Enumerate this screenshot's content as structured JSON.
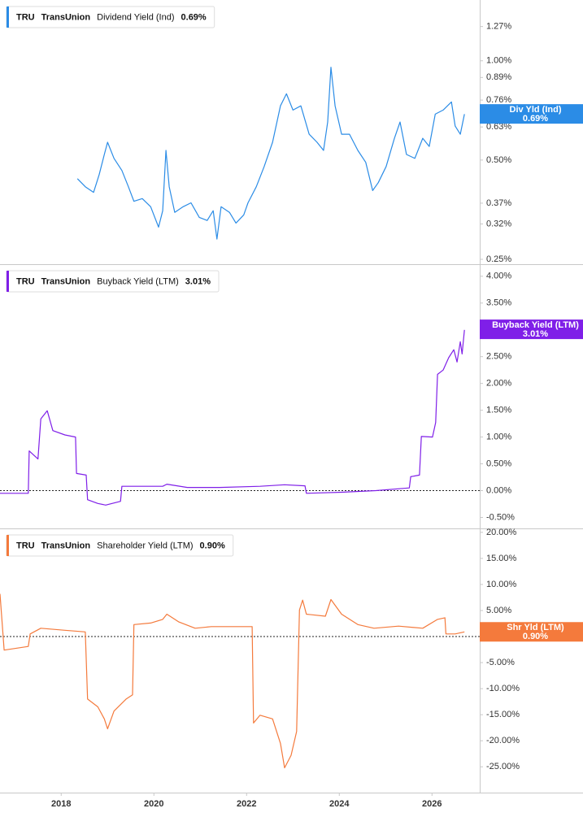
{
  "chart_data": [
    {
      "type": "line",
      "ticker": "TRU",
      "company": "TransUnion",
      "log_scale": true,
      "xlim": [
        2016.68,
        2027.03
      ],
      "ylim": [
        0.243,
        1.52
      ],
      "yticks": [
        {
          "value": 1.27,
          "label": "1.27%"
        },
        {
          "value": 1.0,
          "label": "1.00%"
        },
        {
          "value": 0.89,
          "label": "0.89%"
        },
        {
          "value": 0.76,
          "label": "0.76%"
        },
        {
          "value": 0.63,
          "label": "0.63%"
        },
        {
          "value": 0.5,
          "label": "0.50%"
        },
        {
          "value": 0.37,
          "label": "0.37%"
        },
        {
          "value": 0.32,
          "label": "0.32%"
        },
        {
          "value": 0.25,
          "label": "0.25%"
        }
      ],
      "series": [
        {
          "name": "Dividend Yield (Ind)",
          "short_name": "Div Yld (Ind)",
          "color": "#2b8ce6",
          "current": {
            "value": 0.69,
            "label": "0.69%"
          },
          "x": [
            2018.35,
            2018.52,
            2018.7,
            2018.82,
            2018.93,
            2019.0,
            2019.14,
            2019.31,
            2019.45,
            2019.57,
            2019.75,
            2019.93,
            2020.1,
            2020.19,
            2020.26,
            2020.33,
            2020.45,
            2020.63,
            2020.8,
            2020.98,
            2021.15,
            2021.28,
            2021.36,
            2021.45,
            2021.63,
            2021.77,
            2021.94,
            2022.03,
            2022.21,
            2022.38,
            2022.56,
            2022.73,
            2022.86,
            2023.0,
            2023.17,
            2023.35,
            2023.52,
            2023.66,
            2023.75,
            2023.82,
            2023.91,
            2024.05,
            2024.22,
            2024.4,
            2024.57,
            2024.72,
            2024.84,
            2025.01,
            2025.19,
            2025.31,
            2025.45,
            2025.63,
            2025.8,
            2025.94,
            2026.07,
            2026.24,
            2026.42,
            2026.5,
            2026.61,
            2026.7
          ],
          "values": [
            0.439,
            0.415,
            0.399,
            0.452,
            0.52,
            0.566,
            0.506,
            0.465,
            0.415,
            0.375,
            0.382,
            0.361,
            0.313,
            0.351,
            0.535,
            0.415,
            0.347,
            0.361,
            0.371,
            0.335,
            0.328,
            0.351,
            0.288,
            0.361,
            0.347,
            0.322,
            0.341,
            0.371,
            0.415,
            0.478,
            0.566,
            0.73,
            0.794,
            0.709,
            0.73,
            0.599,
            0.566,
            0.535,
            0.652,
            0.956,
            0.73,
            0.599,
            0.599,
            0.535,
            0.492,
            0.404,
            0.427,
            0.478,
            0.582,
            0.652,
            0.52,
            0.506,
            0.582,
            0.55,
            0.689,
            0.709,
            0.75,
            0.634,
            0.599,
            0.689
          ]
        }
      ]
    },
    {
      "type": "line",
      "ticker": "TRU",
      "company": "TransUnion",
      "log_scale": false,
      "xlim": [
        2016.68,
        2027.03
      ],
      "ylim": [
        -0.69,
        4.21
      ],
      "baseline": 0,
      "yticks": [
        {
          "value": 4,
          "label": "4.00%"
        },
        {
          "value": 3.5,
          "label": "3.50%"
        },
        {
          "value": 3,
          "label": "3.00%"
        },
        {
          "value": 2.5,
          "label": "2.50%"
        },
        {
          "value": 2,
          "label": "2.00%"
        },
        {
          "value": 1.5,
          "label": "1.50%"
        },
        {
          "value": 1,
          "label": "1.00%"
        },
        {
          "value": 0.5,
          "label": "0.50%"
        },
        {
          "value": 0,
          "label": "0.00%"
        },
        {
          "value": -0.5,
          "label": "-0.50%"
        }
      ],
      "series": [
        {
          "name": "Buyback Yield (LTM)",
          "short_name": "Buyback Yield (LTM)",
          "color": "#7f1fe8",
          "current": {
            "value": 3.01,
            "label": "3.01%"
          },
          "x": [
            2016.68,
            2017.29,
            2017.31,
            2017.5,
            2017.56,
            2017.7,
            2017.82,
            2018.08,
            2018.31,
            2018.33,
            2018.54,
            2018.57,
            2018.79,
            2018.96,
            2019.28,
            2019.31,
            2020.19,
            2020.28,
            2020.72,
            2021.42,
            2022.29,
            2022.82,
            2023.26,
            2023.29,
            2024.05,
            2024.79,
            2025.51,
            2025.54,
            2025.73,
            2025.77,
            2026.01,
            2026.08,
            2026.12,
            2026.24,
            2026.36,
            2026.47,
            2026.54,
            2026.61,
            2026.65,
            2026.7
          ],
          "values": [
            -0.05,
            -0.05,
            0.74,
            0.59,
            1.34,
            1.49,
            1.12,
            1.04,
            1.0,
            0.32,
            0.29,
            -0.17,
            -0.24,
            -0.27,
            -0.2,
            0.08,
            0.08,
            0.12,
            0.06,
            0.06,
            0.08,
            0.11,
            0.09,
            -0.05,
            -0.03,
            0.0,
            0.05,
            0.26,
            0.29,
            1.01,
            1.0,
            1.27,
            2.17,
            2.25,
            2.48,
            2.63,
            2.4,
            2.78,
            2.55,
            3.0
          ]
        }
      ]
    },
    {
      "type": "line",
      "ticker": "TRU",
      "company": "TransUnion",
      "log_scale": false,
      "xlim": [
        2016.68,
        2027.03
      ],
      "ylim": [
        -29.8,
        20.6
      ],
      "baseline": 0,
      "xticks": [
        2018,
        2020,
        2022,
        2024,
        2026
      ],
      "yticks": [
        {
          "value": 20,
          "label": "20.00%"
        },
        {
          "value": 15,
          "label": "15.00%"
        },
        {
          "value": 10,
          "label": "10.00%"
        },
        {
          "value": 5,
          "label": "5.00%"
        },
        {
          "value": 0,
          "label": "0.00%"
        },
        {
          "value": -5,
          "label": "-5.00%"
        },
        {
          "value": -10,
          "label": "-10.00%"
        },
        {
          "value": -15,
          "label": "-15.00%"
        },
        {
          "value": -20,
          "label": "-20.00%"
        },
        {
          "value": -25,
          "label": "-25.00%"
        }
      ],
      "series": [
        {
          "name": "Shareholder Yield (LTM)",
          "short_name": "Shr Yld (LTM)",
          "color": "#f47a3c",
          "current": {
            "value": 0.9,
            "label": "0.90%"
          },
          "x": [
            2016.68,
            2016.77,
            2017.29,
            2017.33,
            2017.56,
            2018.08,
            2018.52,
            2018.57,
            2018.79,
            2018.93,
            2019.0,
            2019.14,
            2019.4,
            2019.54,
            2019.57,
            2019.93,
            2020.19,
            2020.28,
            2020.54,
            2020.89,
            2021.24,
            2022.12,
            2022.15,
            2022.29,
            2022.56,
            2022.73,
            2022.82,
            2022.96,
            2023.08,
            2023.14,
            2023.21,
            2023.29,
            2023.7,
            2023.82,
            2024.05,
            2024.4,
            2024.75,
            2025.28,
            2025.8,
            2026.12,
            2026.28,
            2026.3,
            2026.5,
            2026.7
          ],
          "values": [
            8.2,
            -2.6,
            -1.9,
            0.5,
            1.6,
            1.2,
            0.9,
            -12.0,
            -13.5,
            -15.8,
            -17.7,
            -14.3,
            -12.0,
            -11.2,
            2.3,
            2.6,
            3.3,
            4.3,
            2.8,
            1.6,
            1.9,
            1.9,
            -16.6,
            -15.1,
            -15.8,
            -20.5,
            -25.2,
            -22.8,
            -18.2,
            5.1,
            7.0,
            4.3,
            3.9,
            7.1,
            4.3,
            2.3,
            1.6,
            2.0,
            1.6,
            3.3,
            3.6,
            0.5,
            0.5,
            0.9
          ]
        }
      ]
    }
  ]
}
